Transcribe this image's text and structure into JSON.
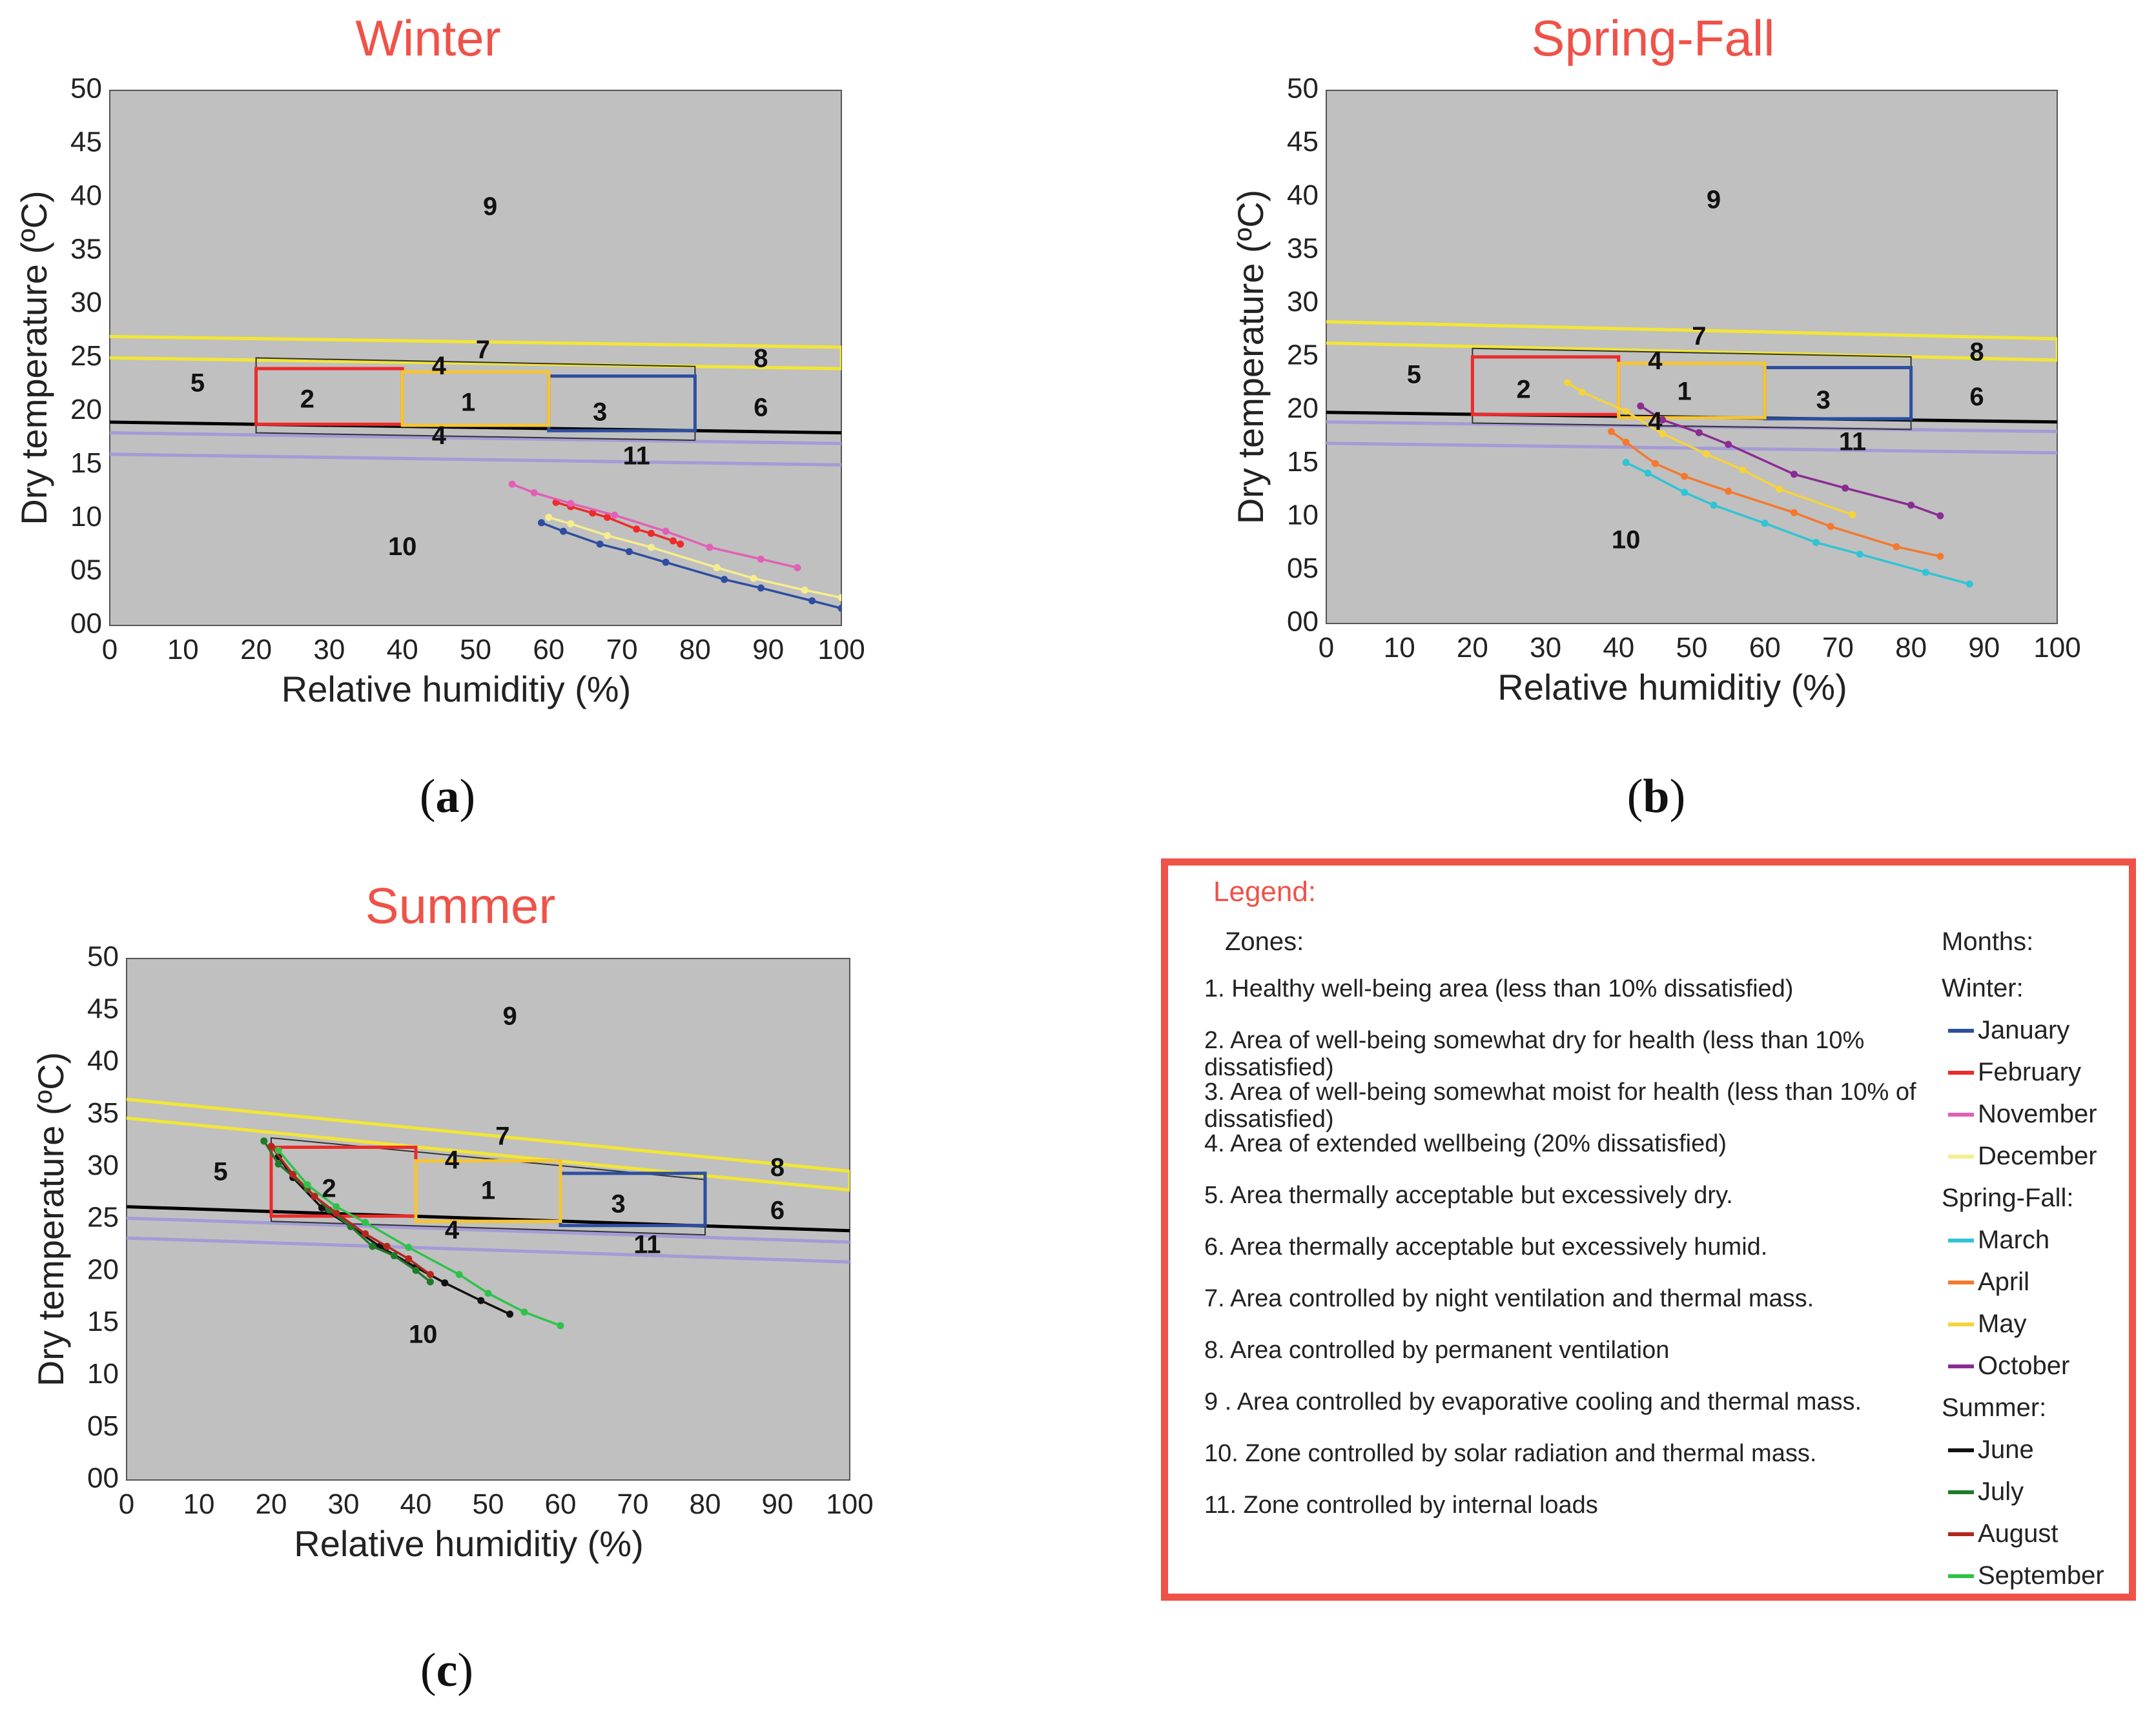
{
  "axes": {
    "xlabel": "Relative humiditiy (%)",
    "ylabel": "Dry temperature (ºC)",
    "xticks": [
      "0",
      "10",
      "20",
      "30",
      "40",
      "50",
      "60",
      "70",
      "80",
      "90",
      "100"
    ],
    "yticks": [
      "00",
      "05",
      "10",
      "15",
      "20",
      "25",
      "30",
      "35",
      "40",
      "45",
      "50"
    ]
  },
  "captions": [
    {
      "open": "(",
      "letter": "a",
      "close": ")"
    },
    {
      "open": "(",
      "letter": "b",
      "close": ")"
    },
    {
      "open": "(",
      "letter": "c",
      "close": ")"
    }
  ],
  "colors": {
    "plot_bg": "#c0c0c0",
    "title": "#ef5248",
    "neutral_line": "#000000",
    "zone7_line": "#f2e635",
    "zone11_line": "#a49bd6",
    "zone_outline": "#333333",
    "zone1": "#f7c531",
    "zone2": "#ee2a2a",
    "zone3": "#2d4ea0"
  },
  "chart_data": [
    {
      "type": "line",
      "title": "Winter",
      "xlabel": "Relative humiditiy (%)",
      "ylabel": "Dry temperature (ºC)",
      "xlim": [
        0,
        100
      ],
      "ylim": [
        0,
        50
      ],
      "grid": false,
      "zones": {
        "zone7_band": {
          "lower": [
            [
              0,
              25
            ],
            [
              100,
              24
            ]
          ],
          "upper": [
            [
              0,
              27
            ],
            [
              100,
              26
            ]
          ]
        },
        "neutral_line": [
          [
            0,
            19
          ],
          [
            100,
            18
          ]
        ],
        "zone11_band": {
          "upper": [
            [
              0,
              18
            ],
            [
              100,
              17
            ]
          ],
          "lower": [
            [
              0,
              16
            ],
            [
              100,
              15
            ]
          ]
        },
        "zone4_box": {
          "x": [
            20,
            80
          ],
          "top": [
            25,
            24.2
          ],
          "bottom": [
            18,
            17.3
          ]
        },
        "zone2_box": {
          "x": [
            20,
            40
          ],
          "top": 24,
          "bottom": 18.8
        },
        "zone1_box": {
          "x": [
            40,
            60
          ],
          "top": 23.7,
          "bottom": 18.7
        },
        "zone3_box": {
          "x": [
            60,
            80
          ],
          "top": 23.3,
          "bottom": 18.2
        }
      },
      "zone_labels": [
        {
          "text": "9",
          "x": 52,
          "y": 39
        },
        {
          "text": "7",
          "x": 51,
          "y": 25.6
        },
        {
          "text": "8",
          "x": 89,
          "y": 24.8
        },
        {
          "text": "4",
          "x": 45,
          "y": 24.1
        },
        {
          "text": "5",
          "x": 12,
          "y": 22.5
        },
        {
          "text": "2",
          "x": 27,
          "y": 21
        },
        {
          "text": "1",
          "x": 49,
          "y": 20.7
        },
        {
          "text": "3",
          "x": 67,
          "y": 19.8
        },
        {
          "text": "6",
          "x": 89,
          "y": 20.2
        },
        {
          "text": "4",
          "x": 45,
          "y": 17.6
        },
        {
          "text": "11",
          "x": 72,
          "y": 15.7
        },
        {
          "text": "10",
          "x": 40,
          "y": 7.2
        }
      ],
      "series": [
        {
          "name": "January",
          "color": "#2d4ea0",
          "x": [
            59,
            62,
            67,
            71,
            76,
            84,
            89,
            96,
            100
          ],
          "y": [
            9.6,
            8.8,
            7.6,
            6.9,
            5.9,
            4.3,
            3.5,
            2.3,
            1.6
          ]
        },
        {
          "name": "February",
          "color": "#ee2a2a",
          "x": [
            61,
            63,
            66,
            68,
            72,
            74,
            77,
            78
          ],
          "y": [
            11.5,
            11.1,
            10.5,
            10.1,
            9.0,
            8.6,
            7.9,
            7.6
          ]
        },
        {
          "name": "November",
          "color": "#e25fb6",
          "x": [
            55,
            58,
            63,
            69,
            76,
            82,
            89,
            94
          ],
          "y": [
            13.2,
            12.4,
            11.4,
            10.3,
            8.8,
            7.3,
            6.2,
            5.4
          ]
        },
        {
          "name": "December",
          "color": "#f6ee8e",
          "x": [
            60,
            63,
            68,
            74,
            83,
            88,
            95,
            100
          ],
          "y": [
            10.1,
            9.5,
            8.4,
            7.3,
            5.4,
            4.4,
            3.3,
            2.6
          ]
        }
      ]
    },
    {
      "type": "line",
      "title": "Spring-Fall",
      "xlabel": "Relative humiditiy (%)",
      "ylabel": "Dry temperature (ºC)",
      "xlim": [
        0,
        100
      ],
      "ylim": [
        0,
        50
      ],
      "grid": false,
      "zones": {
        "zone7_band": {
          "lower": [
            [
              0,
              26.3
            ],
            [
              100,
              24.7
            ]
          ],
          "upper": [
            [
              0,
              28.3
            ],
            [
              100,
              26.7
            ]
          ]
        },
        "neutral_line": [
          [
            0,
            19.8
          ],
          [
            100,
            18.9
          ]
        ],
        "zone11_band": {
          "upper": [
            [
              0,
              18.9
            ],
            [
              100,
              18.0
            ]
          ],
          "lower": [
            [
              0,
              16.9
            ],
            [
              100,
              16.0
            ]
          ]
        },
        "zone4_box": {
          "x": [
            20,
            80
          ],
          "top": [
            25.8,
            25.0
          ],
          "bottom": [
            18.8,
            18.2
          ]
        },
        "zone2_box": {
          "x": [
            20,
            40
          ],
          "top": 25,
          "bottom": 19.6
        },
        "zone1_box": {
          "x": [
            40,
            60
          ],
          "top": 24.4,
          "bottom": 19.3
        },
        "zone3_box": {
          "x": [
            60,
            80
          ],
          "top": 24,
          "bottom": 19.2
        }
      },
      "zone_labels": [
        {
          "text": "9",
          "x": 53,
          "y": 39.6
        },
        {
          "text": "7",
          "x": 51,
          "y": 26.8
        },
        {
          "text": "8",
          "x": 89,
          "y": 25.3
        },
        {
          "text": "4",
          "x": 45,
          "y": 24.5
        },
        {
          "text": "5",
          "x": 12,
          "y": 23.2
        },
        {
          "text": "2",
          "x": 27,
          "y": 21.8
        },
        {
          "text": "1",
          "x": 49,
          "y": 21.6
        },
        {
          "text": "3",
          "x": 68,
          "y": 20.8
        },
        {
          "text": "6",
          "x": 89,
          "y": 21.1
        },
        {
          "text": "4",
          "x": 45,
          "y": 18.8
        },
        {
          "text": "11",
          "x": 72,
          "y": 16.9
        },
        {
          "text": "10",
          "x": 41,
          "y": 7.7
        }
      ],
      "series": [
        {
          "name": "March",
          "color": "#2fc4d6",
          "x": [
            41,
            44,
            49,
            53,
            60,
            67,
            73,
            82,
            88
          ],
          "y": [
            15.1,
            14.1,
            12.3,
            11.1,
            9.4,
            7.6,
            6.5,
            4.8,
            3.7
          ]
        },
        {
          "name": "April",
          "color": "#f4792d",
          "x": [
            39,
            41,
            45,
            49,
            55,
            64,
            69,
            78,
            84
          ],
          "y": [
            18.0,
            17.0,
            15.0,
            13.8,
            12.4,
            10.4,
            9.1,
            7.2,
            6.3
          ]
        },
        {
          "name": "May",
          "color": "#f7d33a",
          "x": [
            33,
            35,
            41,
            46,
            52,
            57,
            62,
            72
          ],
          "y": [
            22.6,
            21.7,
            19.9,
            17.8,
            15.9,
            14.4,
            12.6,
            10.2
          ]
        },
        {
          "name": "October",
          "color": "#8a2c92",
          "x": [
            43,
            46,
            51,
            55,
            64,
            71,
            80,
            84
          ],
          "y": [
            20.4,
            19.1,
            17.9,
            16.8,
            14.0,
            12.7,
            11.1,
            10.1
          ]
        }
      ]
    },
    {
      "type": "line",
      "title": "Summer",
      "xlabel": "Relative humiditiy (%)",
      "ylabel": "Dry temperature (ºC)",
      "xlim": [
        0,
        100
      ],
      "ylim": [
        0,
        50
      ],
      "grid": false,
      "zones": {
        "zone7_band": {
          "lower": [
            [
              0,
              34.7
            ],
            [
              100,
              27.8
            ]
          ],
          "upper": [
            [
              0,
              36.5
            ],
            [
              100,
              29.6
            ]
          ]
        },
        "neutral_line": [
          [
            0,
            26.2
          ],
          [
            100,
            23.9
          ]
        ],
        "zone11_band": {
          "upper": [
            [
              0,
              25.1
            ],
            [
              100,
              22.8
            ]
          ],
          "lower": [
            [
              0,
              23.2
            ],
            [
              100,
              20.9
            ]
          ]
        },
        "zone4_box": {
          "x": [
            20,
            80
          ],
          "top": [
            32.8,
            28.8
          ],
          "bottom": [
            24.8,
            23.5
          ]
        },
        "zone2_box": {
          "x": [
            20,
            40
          ],
          "top": 31.9,
          "bottom": 25.3
        },
        "zone1_box": {
          "x": [
            40,
            60
          ],
          "top": 30.6,
          "bottom": 24.8
        },
        "zone3_box": {
          "x": [
            60,
            80
          ],
          "top": 29.4,
          "bottom": 24.4
        }
      },
      "zone_labels": [
        {
          "text": "9",
          "x": 53,
          "y": 44.3
        },
        {
          "text": "7",
          "x": 52,
          "y": 32.8
        },
        {
          "text": "8",
          "x": 90,
          "y": 29.8
        },
        {
          "text": "4",
          "x": 45,
          "y": 30.5
        },
        {
          "text": "5",
          "x": 13,
          "y": 29.4
        },
        {
          "text": "2",
          "x": 28,
          "y": 27.8
        },
        {
          "text": "1",
          "x": 50,
          "y": 27.6
        },
        {
          "text": "3",
          "x": 68,
          "y": 26.3
        },
        {
          "text": "6",
          "x": 90,
          "y": 25.7
        },
        {
          "text": "4",
          "x": 45,
          "y": 23.8
        },
        {
          "text": "11",
          "x": 72,
          "y": 22.4
        },
        {
          "text": "10",
          "x": 41,
          "y": 13.8
        }
      ],
      "series": [
        {
          "name": "June",
          "color": "#111111",
          "x": [
            21,
            23,
            27,
            31,
            35,
            40,
            44,
            49,
            53
          ],
          "y": [
            31.0,
            29.0,
            26.1,
            24.3,
            22.4,
            20.4,
            18.9,
            17.2,
            15.9
          ]
        },
        {
          "name": "July",
          "color": "#1f7a2a",
          "x": [
            19,
            21,
            25,
            28,
            31,
            34,
            37,
            40,
            42
          ],
          "y": [
            32.5,
            30.3,
            27.9,
            25.9,
            24.3,
            22.4,
            21.5,
            20.1,
            19.0
          ]
        },
        {
          "name": "August",
          "color": "#b3261e",
          "x": [
            20,
            23,
            26,
            29,
            33,
            36,
            39,
            42
          ],
          "y": [
            32.0,
            29.3,
            27.2,
            25.6,
            23.6,
            22.4,
            21.2,
            19.7
          ]
        },
        {
          "name": "September",
          "color": "#2fc24a",
          "x": [
            21,
            25,
            29,
            33,
            39,
            46,
            50,
            55,
            60
          ],
          "y": [
            31.6,
            28.3,
            26.2,
            24.7,
            22.3,
            19.7,
            17.9,
            16.1,
            14.8
          ]
        }
      ]
    }
  ],
  "legend": {
    "title": "Legend:",
    "zones_heading": "Zones:",
    "zones": [
      "1. Healthy well-being area (less than 10% dissatisfied)",
      "2. Area of well-being somewhat dry for health (less than 10% dissatisfied)",
      "3. Area of well-being somewhat moist for health (less than 10% of dissatisfied)",
      "4. Area of extended wellbeing (20% dissatisfied)",
      "5. Area thermally acceptable but excessively dry.",
      "6. Area thermally acceptable but excessively humid.",
      "7. Area controlled by night ventilation and thermal mass.",
      "8. Area controlled by permanent ventilation",
      "9 . Area controlled by evaporative cooling and thermal mass.",
      "10. Zone controlled by solar radiation and thermal mass.",
      "11. Zone controlled by internal loads"
    ],
    "months_heading": "Months:",
    "groups": [
      {
        "season": "Winter:",
        "months": [
          {
            "name": "January",
            "color": "#2d4ea0"
          },
          {
            "name": "February",
            "color": "#ee2a2a"
          },
          {
            "name": "November",
            "color": "#e25fb6"
          },
          {
            "name": "December",
            "color": "#f6ee8e"
          }
        ]
      },
      {
        "season": "Spring-Fall:",
        "months": [
          {
            "name": "March",
            "color": "#2fc4d6"
          },
          {
            "name": "April",
            "color": "#f4792d"
          },
          {
            "name": "May",
            "color": "#f7d33a"
          },
          {
            "name": "October",
            "color": "#8a2c92"
          }
        ]
      },
      {
        "season": "Summer:",
        "months": [
          {
            "name": "June",
            "color": "#111111"
          },
          {
            "name": "July",
            "color": "#1f7a2a"
          },
          {
            "name": "August",
            "color": "#b3261e"
          },
          {
            "name": "September",
            "color": "#2fc24a"
          }
        ]
      }
    ]
  }
}
